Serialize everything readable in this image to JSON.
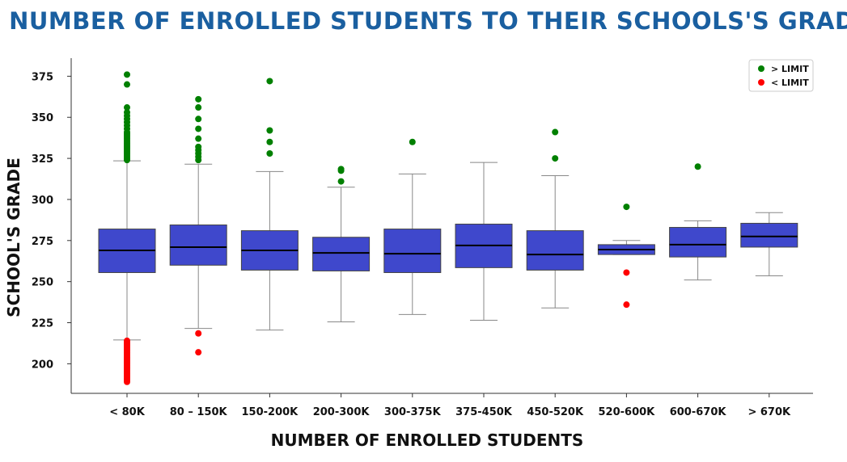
{
  "chart_data": {
    "type": "box",
    "title": "NUMBER OF ENROLLED STUDENTS TO THEIR SCHOOLS'S GRADE",
    "xlabel": "NUMBER OF ENROLLED STUDENTS",
    "ylabel": "SCHOOL'S GRADE",
    "ylim": [
      182,
      386
    ],
    "yticks": [
      200,
      225,
      250,
      275,
      300,
      325,
      350,
      375
    ],
    "grid": false,
    "legend": {
      "position": "top-right",
      "entries": [
        {
          "label": "> LIMIT",
          "color": "#008000"
        },
        {
          "label": "< LIMIT",
          "color": "#ff0000"
        }
      ]
    },
    "colors": {
      "box": "#3f48cc",
      "median": "#000000",
      "whisker": "#888888",
      "above": "#008000",
      "below": "#ff0000"
    },
    "categories": [
      "< 80K",
      "80 – 150K",
      "150-200K",
      "200-300K",
      "300-375K",
      "375-450K",
      "450-520K",
      "520-600K",
      "600-670K",
      "> 670K"
    ],
    "boxes": [
      {
        "low": 214.5,
        "q1": 255.5,
        "median": 269,
        "q3": 282,
        "high": 323.5,
        "above": [
          324,
          325,
          326,
          327,
          328,
          329,
          330,
          331,
          332,
          333,
          334,
          335,
          336,
          337,
          338,
          339,
          340,
          341,
          343,
          345,
          347,
          349,
          351,
          353,
          356,
          370,
          376
        ],
        "below": [
          189,
          190,
          191,
          192,
          193,
          194,
          195,
          196,
          197,
          198,
          199,
          200,
          201,
          202,
          203,
          204,
          205,
          206,
          207,
          208,
          209,
          210,
          211,
          212,
          213,
          214
        ]
      },
      {
        "low": 221.5,
        "q1": 260,
        "median": 271,
        "q3": 284.5,
        "high": 321.5,
        "above": [
          324,
          326,
          328,
          330,
          332,
          337,
          343,
          349,
          356,
          361
        ],
        "below": [
          207,
          218.5
        ]
      },
      {
        "low": 220.5,
        "q1": 257,
        "median": 269,
        "q3": 281,
        "high": 317,
        "above": [
          328,
          335,
          342,
          372
        ]
      },
      {
        "low": 225.5,
        "q1": 256.5,
        "median": 267.5,
        "q3": 277,
        "high": 307.5,
        "above": [
          311,
          317.5,
          318.5
        ]
      },
      {
        "low": 230,
        "q1": 255.5,
        "median": 267,
        "q3": 282,
        "high": 315.5,
        "above": [
          335
        ]
      },
      {
        "low": 226.5,
        "q1": 258.5,
        "median": 272,
        "q3": 285,
        "high": 322.5
      },
      {
        "low": 234,
        "q1": 257,
        "median": 266.5,
        "q3": 281,
        "high": 314.5,
        "above": [
          325,
          341
        ]
      },
      {
        "low": 266.5,
        "q1": 266.5,
        "median": 269.5,
        "q3": 272.5,
        "high": 275,
        "above": [
          295.5
        ],
        "below": [
          236,
          255.5
        ]
      },
      {
        "low": 251,
        "q1": 265,
        "median": 272.5,
        "q3": 283,
        "high": 287,
        "above": [
          320
        ]
      },
      {
        "low": 253.5,
        "q1": 271,
        "median": 277.5,
        "q3": 285.5,
        "high": 292
      }
    ]
  }
}
